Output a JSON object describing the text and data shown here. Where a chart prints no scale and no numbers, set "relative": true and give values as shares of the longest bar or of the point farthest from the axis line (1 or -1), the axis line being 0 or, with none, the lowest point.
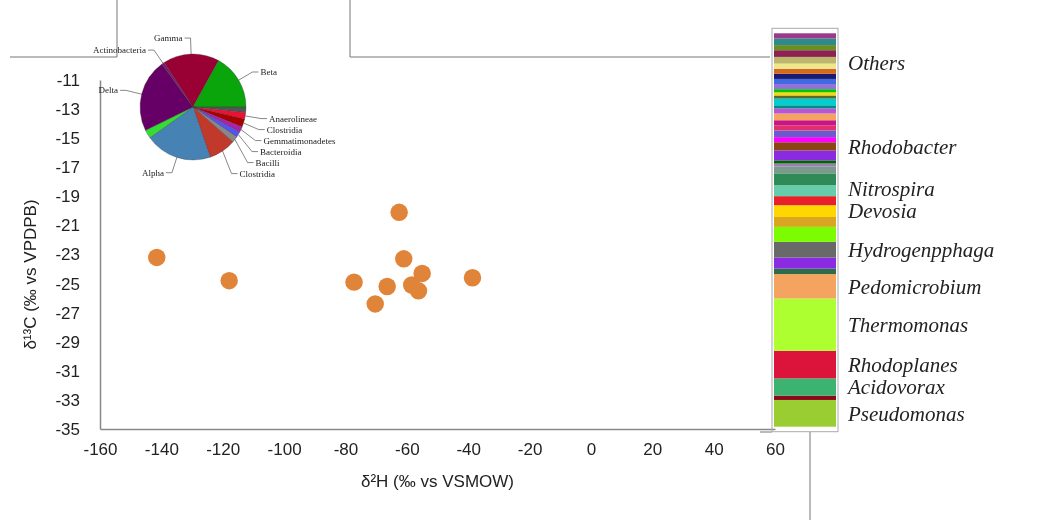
{
  "chart_data": [
    {
      "type": "scatter",
      "xlabel": "δ²H (‰ vs VSMOW)",
      "ylabel": "δ¹³C (‰ vs VPDPB)",
      "xlim": [
        -160,
        60
      ],
      "xticks": [
        -160,
        -140,
        -120,
        -100,
        -80,
        -60,
        -40,
        -20,
        0,
        20,
        40,
        60
      ],
      "ylim": [
        -35,
        -11
      ],
      "yticks": [
        -35,
        -33,
        -31,
        -29,
        -27,
        -25,
        -23,
        -21,
        -19,
        -17,
        -15,
        -13,
        -11
      ],
      "marker": "circle",
      "series": [
        {
          "color": "#e0843a",
          "x": [
            -141.5,
            -117.9,
            -62.5,
            -61.0,
            -55.0,
            -77.2,
            -66.4,
            -58.4,
            -56.2,
            -70.3,
            -38.6
          ],
          "values": [
            -23.2,
            -24.8,
            -20.1,
            -23.3,
            -24.3,
            -24.9,
            -25.2,
            -25.1,
            -25.5,
            -26.4,
            -24.6
          ]
        }
      ]
    },
    {
      "type": "pie",
      "categories": [
        "Gamma",
        "Beta",
        null,
        "Anaerolineae",
        "Clostridia",
        "Gemmatimonadetes",
        "Bacteroidia",
        "Bacilli",
        "Clostridia",
        "Alpha",
        null,
        "Delta",
        "Actinobacteria"
      ],
      "values": [
        17.2,
        17.0,
        1.7,
        1.9,
        2.5,
        1.7,
        1.7,
        1.9,
        8.3,
        20.4,
        2.6,
        22.3,
        0.8
      ],
      "colors": [
        "#990033",
        "#0aa50a",
        "#555555",
        "#ee1133",
        "#aa0000",
        "#aa22aa",
        "#5555ee",
        "#888888",
        "#c0392b",
        "#4682b4",
        "#33dd33",
        "#660066",
        "#7a1a6a"
      ]
    },
    {
      "type": "bar",
      "stacked": true,
      "relative": true,
      "categories": [
        null
      ],
      "annotations": [
        "Others"
      ],
      "series": [
        {
          "name": "Pseudomonas",
          "color": "#9acd32",
          "values": [
            0.068
          ]
        },
        {
          "color": "#8b0a1a",
          "values": [
            0.011
          ]
        },
        {
          "name": "Acidovorax",
          "color": "#3cb371",
          "values": [
            0.044
          ]
        },
        {
          "name": "Rhodoplanes",
          "color": "#dc143c",
          "values": [
            0.07
          ]
        },
        {
          "name": "Thermomonas",
          "color": "#adff2f",
          "values": [
            0.133
          ]
        },
        {
          "name": "Pedomicrobium",
          "color": "#f4a460",
          "values": [
            0.062
          ]
        },
        {
          "color": "#2e6b4a",
          "values": [
            0.014
          ]
        },
        {
          "color": "#8a2be2",
          "values": [
            0.028
          ]
        },
        {
          "name": "Hydrogenpphaga",
          "color": "#696969",
          "values": [
            0.04
          ]
        },
        {
          "color": "#7cfc00",
          "values": [
            0.038
          ]
        },
        {
          "color": "#daa520",
          "values": [
            0.025
          ]
        },
        {
          "name": "Devosia",
          "color": "#ffd700",
          "values": [
            0.03
          ]
        },
        {
          "color": "#e8202a",
          "values": [
            0.023
          ]
        },
        {
          "name": "Nitrospira",
          "color": "#66cdaa",
          "values": [
            0.028
          ]
        },
        {
          "color": "#2e8b57",
          "values": [
            0.03
          ]
        },
        {
          "color": "#7a9a8a",
          "values": [
            0.017
          ]
        },
        {
          "color": "#9a7fb0",
          "values": [
            0.008
          ]
        },
        {
          "color": "#006400",
          "values": [
            0.008
          ]
        },
        {
          "color": "#8a2be2",
          "values": [
            0.025
          ]
        },
        {
          "name": "Rhodobacter",
          "color": "#8b4513",
          "values": [
            0.021
          ]
        },
        {
          "color": "#ff00ff",
          "values": [
            0.013
          ]
        },
        {
          "color": "#6a5acd",
          "values": [
            0.017
          ]
        },
        {
          "color": "#e0306e",
          "values": [
            0.013
          ]
        },
        {
          "color": "#c71585",
          "values": [
            0.013
          ]
        },
        {
          "color": "#f4a460",
          "values": [
            0.017
          ]
        },
        {
          "color": "#ba55d3",
          "values": [
            0.013
          ]
        },
        {
          "color": "#008b8b",
          "values": [
            0.008
          ]
        },
        {
          "color": "#00ced1",
          "values": [
            0.017
          ]
        },
        {
          "color": "#556b2f",
          "values": [
            0.008
          ]
        },
        {
          "color": "#ffd700",
          "values": [
            0.008
          ]
        },
        {
          "color": "#00c800",
          "values": [
            0.008
          ]
        },
        {
          "color": "#9370db",
          "values": [
            0.013
          ]
        },
        {
          "color": "#4169e1",
          "values": [
            0.013
          ]
        },
        {
          "color": "#191970",
          "values": [
            0.013
          ]
        },
        {
          "color": "#d2691e",
          "values": [
            0.013
          ]
        },
        {
          "color": "#f0e68c",
          "values": [
            0.013
          ]
        },
        {
          "color": "#bdb76b",
          "values": [
            0.017
          ]
        },
        {
          "color": "#8b2252",
          "values": [
            0.017
          ]
        },
        {
          "color": "#6b8e23",
          "values": [
            0.013
          ]
        },
        {
          "color": "#2e8b8b",
          "values": [
            0.017
          ]
        },
        {
          "color": "#9b3a8a",
          "values": [
            0.013
          ]
        }
      ]
    }
  ]
}
